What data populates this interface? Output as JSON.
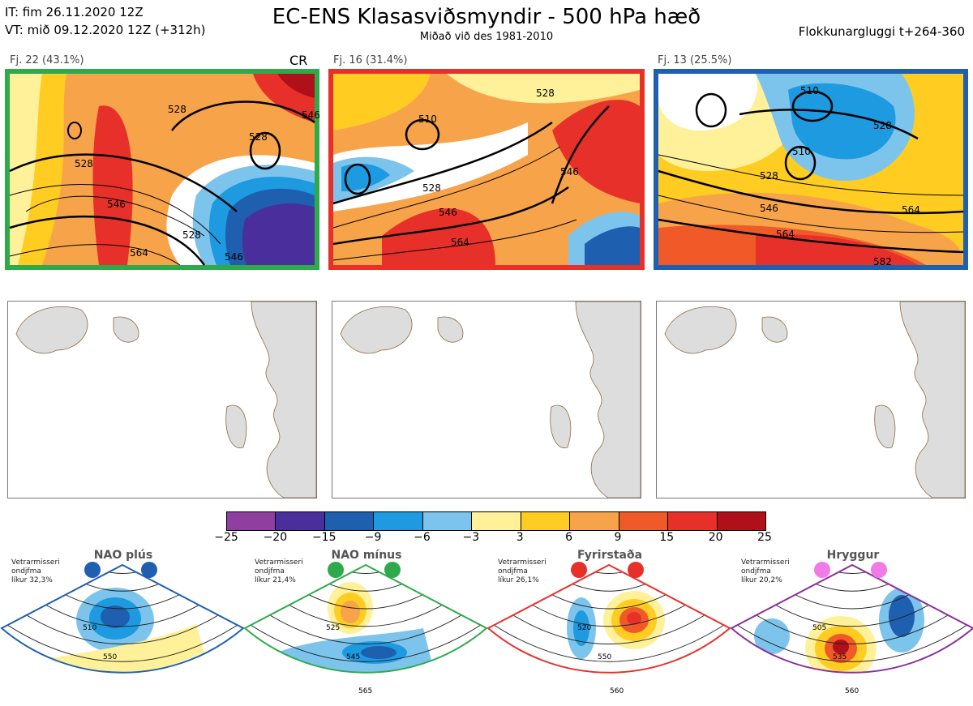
{
  "header": {
    "it_line": "IT: fim 26.11.2020 12Z",
    "vt_line": "VT: mið 09.12.2020 12Z  (+312h)",
    "title": "EC-ENS Klasasviðsmyndir - 500 hPa hæð",
    "subtitle": "Miðað við des 1981-2010",
    "window": "Flokkunargluggi t+264-360"
  },
  "panels": [
    {
      "label": "Fj. 22 (43.1%)",
      "tag": "CR",
      "border": "#2eaa4a",
      "contours": [
        "528",
        "528",
        "528",
        "546",
        "564",
        "528",
        "546",
        "546"
      ]
    },
    {
      "label": "Fj. 16 (31.4%)",
      "tag": "",
      "border": "#e8302a",
      "contours": [
        "510",
        "528",
        "546",
        "564",
        "528",
        "546"
      ]
    },
    {
      "label": "Fj. 13 (25.5%)",
      "tag": "",
      "border": "#1f5fb0",
      "contours": [
        "510",
        "510",
        "528",
        "528",
        "546",
        "564",
        "564",
        "582"
      ]
    }
  ],
  "colorbar": {
    "ticks": [
      "−25",
      "−20",
      "−15",
      "−9",
      "−6",
      "−3",
      "3",
      "6",
      "9",
      "15",
      "20",
      "25"
    ],
    "colors": [
      "#8e3fa0",
      "#4a2f9c",
      "#1f5fb0",
      "#1d9ae0",
      "#7cc4ec",
      "#ffffff",
      "#fff19a",
      "#ffcc22",
      "#f7a34a",
      "#f05a28",
      "#e8302a",
      "#b0101a"
    ]
  },
  "regimes": [
    {
      "name": "NAO plús",
      "info": [
        "Vetrarmisseri",
        "ondjfma",
        "líkur 32,3%"
      ],
      "color": "#1f5fb0",
      "dot": "#1f5fb0",
      "contours": [
        "510",
        "550"
      ]
    },
    {
      "name": "NAO mínus",
      "info": [
        "Vetrarmisseri",
        "ondjfma",
        "líkur 21,4%"
      ],
      "color": "#2eaa4a",
      "dot": "#2eaa4a",
      "contours": [
        "525",
        "545",
        "565"
      ]
    },
    {
      "name": "Fyrirstaða",
      "info": [
        "Vetrarmisseri",
        "ondjfma",
        "líkur 26,1%"
      ],
      "color": "#e8302a",
      "dot": "#e8302a",
      "contours": [
        "520",
        "550",
        "560"
      ]
    },
    {
      "name": "Hryggur",
      "info": [
        "Vetrarmisseri",
        "ondjfma",
        "líkur 20,2%"
      ],
      "color": "#8a2f9c",
      "dot": "#f07be8",
      "contours": [
        "505",
        "535",
        "560"
      ]
    }
  ]
}
